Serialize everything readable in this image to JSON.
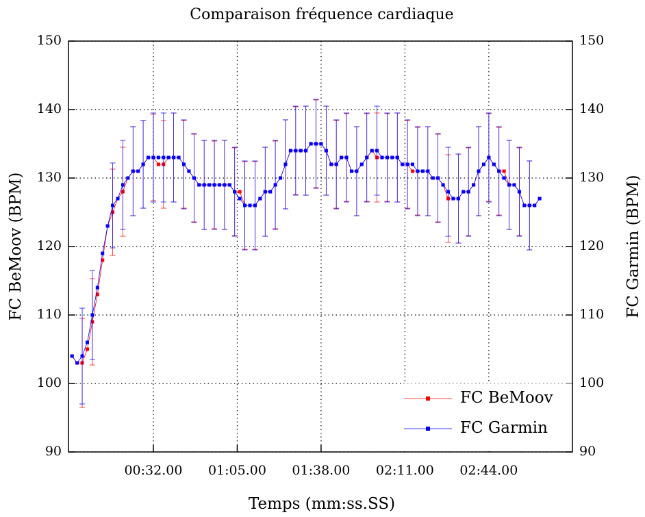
{
  "chart_data": {
    "type": "line",
    "title": "Comparaison fréquence cardiaque",
    "x_label": "Temps (mm:ss.SS)",
    "y_label": "FC BeMoov (BPM)",
    "y2_label": "FC Garmin (BPM)",
    "xlim": [
      -1.4,
      196.9
    ],
    "xticks": [
      {
        "value": 32,
        "label": "00:32.00"
      },
      {
        "value": 65,
        "label": "01:05.00"
      },
      {
        "value": 98,
        "label": "01:38.00"
      },
      {
        "value": 131,
        "label": "02:11.00"
      },
      {
        "value": 164,
        "label": "02:44.00"
      }
    ],
    "ylim": [
      90,
      150
    ],
    "yticks": [
      90,
      100,
      110,
      120,
      130,
      140,
      150
    ],
    "y2lim": [
      90,
      150
    ],
    "y2ticks": [
      90,
      100,
      110,
      120,
      130,
      140,
      150
    ],
    "grid": true,
    "legend": "lower right",
    "x": [
      0,
      2,
      4,
      6,
      8,
      10,
      12,
      14,
      16,
      18,
      20,
      22,
      24,
      26,
      28,
      30,
      32,
      34,
      36,
      38,
      40,
      42,
      44,
      46,
      48,
      50,
      52,
      54,
      56,
      58,
      60,
      62,
      64,
      66,
      68,
      70,
      72,
      74,
      76,
      78,
      80,
      82,
      84,
      86,
      88,
      90,
      92,
      94,
      96,
      98,
      100,
      102,
      104,
      106,
      108,
      110,
      112,
      114,
      116,
      118,
      120,
      122,
      124,
      126,
      128,
      130,
      132,
      134,
      136,
      138,
      140,
      142,
      144,
      146,
      148,
      150,
      152,
      154,
      156,
      158,
      160,
      162,
      164,
      166,
      168,
      170,
      172,
      174,
      176,
      178,
      180,
      182,
      184
    ],
    "series": [
      {
        "name": "FC BeMoov",
        "color": "#ff0000",
        "axis": "y",
        "values": [
          104,
          103,
          103,
          105,
          109,
          113,
          118,
          123,
          125,
          127,
          128,
          130,
          131,
          131,
          132,
          133,
          133,
          132,
          132,
          133,
          133,
          133,
          132,
          131,
          130,
          129,
          129,
          129,
          129,
          129,
          129,
          129,
          128,
          128,
          126,
          126,
          126,
          127,
          128,
          128,
          129,
          130,
          132,
          134,
          134,
          134,
          134,
          135,
          135,
          135,
          134,
          132,
          132,
          133,
          133,
          131,
          131,
          132,
          133,
          134,
          133,
          133,
          133,
          133,
          133,
          132,
          132,
          131,
          131,
          131,
          131,
          130,
          130,
          129,
          127,
          127,
          127,
          128,
          128,
          129,
          131,
          132,
          133,
          132,
          131,
          131,
          129,
          129,
          128,
          126,
          126,
          126,
          127
        ],
        "errors": [
          null,
          null,
          6.5,
          null,
          6.3,
          null,
          null,
          null,
          6.3,
          null,
          6.5,
          null,
          6.5,
          null,
          6.4,
          null,
          6.3,
          null,
          6.4,
          null,
          6.5,
          null,
          6.4,
          null,
          6.4,
          null,
          6.5,
          null,
          6.4,
          null,
          6.5,
          null,
          6.4,
          null,
          6.4,
          null,
          6.4,
          null,
          6.5,
          null,
          6.4,
          null,
          6.5,
          null,
          6.4,
          null,
          6.5,
          null,
          6.4,
          null,
          6.5,
          null,
          6.4,
          null,
          6.4,
          null,
          6.5,
          null,
          6.4,
          null,
          6.5,
          null,
          6.4,
          null,
          6.5,
          null,
          6.4,
          null,
          6.4,
          null,
          6.5,
          null,
          6.4,
          null,
          6.4,
          null,
          6.5,
          null,
          6.4,
          null,
          6.5,
          null,
          6.4,
          null,
          6.4,
          null,
          6.5,
          null,
          6.4,
          null,
          6.5,
          null,
          null
        ]
      },
      {
        "name": "FC Garmin",
        "color": "#0000ff",
        "axis": "y2",
        "values": [
          104,
          103,
          104,
          106,
          110,
          114,
          119,
          123,
          126,
          127,
          129,
          130,
          131,
          131,
          132,
          133,
          133,
          133,
          133,
          133,
          133,
          133,
          132,
          131,
          130,
          129,
          129,
          129,
          129,
          129,
          129,
          129,
          128,
          127,
          126,
          126,
          126,
          127,
          128,
          128,
          129,
          130,
          132,
          134,
          134,
          134,
          134,
          135,
          135,
          135,
          134,
          132,
          132,
          133,
          133,
          131,
          131,
          132,
          133,
          134,
          134,
          133,
          133,
          133,
          133,
          132,
          132,
          132,
          131,
          131,
          131,
          130,
          130,
          129,
          128,
          127,
          127,
          128,
          128,
          129,
          131,
          132,
          133,
          132,
          131,
          130,
          129,
          129,
          128,
          126,
          126,
          126,
          127
        ],
        "errors": [
          null,
          null,
          7,
          null,
          6.5,
          null,
          null,
          null,
          6.2,
          null,
          6.5,
          null,
          6.5,
          null,
          6.4,
          null,
          6.5,
          null,
          6.5,
          null,
          6.5,
          null,
          6.5,
          null,
          6.5,
          null,
          6.5,
          null,
          6.5,
          null,
          6.5,
          null,
          6.5,
          null,
          6.5,
          null,
          6.5,
          null,
          6.5,
          null,
          6.5,
          null,
          6.5,
          null,
          6.5,
          null,
          6.5,
          null,
          6.5,
          null,
          6.5,
          null,
          6.5,
          null,
          6.5,
          null,
          6.5,
          null,
          6.5,
          null,
          6.5,
          null,
          6.5,
          null,
          6.5,
          null,
          6.5,
          null,
          6.5,
          null,
          6.5,
          null,
          6.5,
          null,
          6.5,
          null,
          6.5,
          null,
          6.5,
          null,
          6.5,
          null,
          6.5,
          null,
          6.5,
          null,
          6.5,
          null,
          6.5,
          null,
          6.5,
          null,
          null
        ]
      }
    ]
  }
}
